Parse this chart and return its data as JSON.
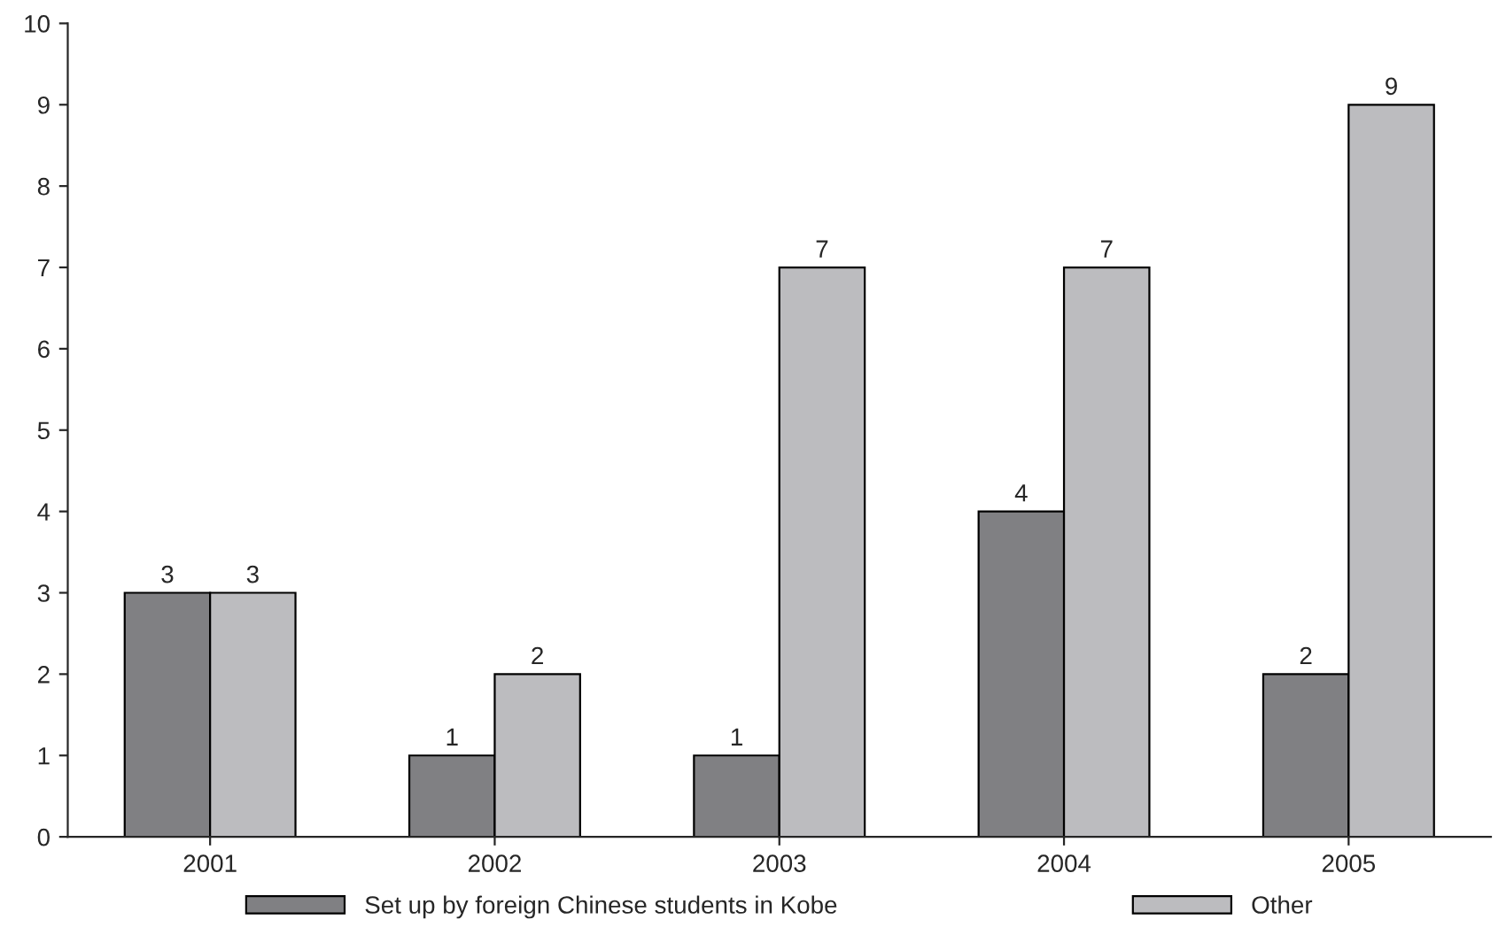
{
  "chart_data": {
    "type": "bar",
    "categories": [
      "2001",
      "2002",
      "2003",
      "2004",
      "2005"
    ],
    "series": [
      {
        "name": "Set up by foreign Chinese students in Kobe",
        "color": "#808083",
        "values": [
          3,
          1,
          1,
          4,
          2
        ]
      },
      {
        "name": "Other",
        "color": "#bcbcbf",
        "values": [
          3,
          2,
          7,
          7,
          9
        ]
      }
    ],
    "ylim": [
      0,
      10
    ],
    "yticks": [
      0,
      1,
      2,
      3,
      4,
      5,
      6,
      7,
      8,
      9,
      10
    ],
    "data_labels": true,
    "grid": false,
    "legend": "bottom"
  }
}
